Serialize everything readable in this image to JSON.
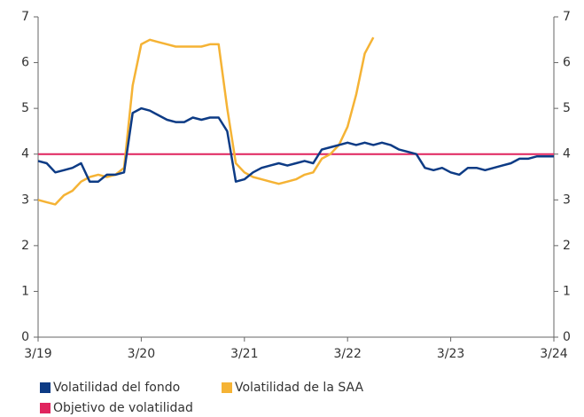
{
  "chart_data": {
    "type": "line",
    "x": [
      "2019-03",
      "2019-04",
      "2019-05",
      "2019-06",
      "2019-07",
      "2019-08",
      "2019-09",
      "2019-10",
      "2019-11",
      "2019-12",
      "2020-01",
      "2020-02",
      "2020-03",
      "2020-04",
      "2020-05",
      "2020-06",
      "2020-07",
      "2020-08",
      "2020-09",
      "2020-10",
      "2020-11",
      "2020-12",
      "2021-01",
      "2021-02",
      "2021-03",
      "2021-04",
      "2021-05",
      "2021-06",
      "2021-07",
      "2021-08",
      "2021-09",
      "2021-10",
      "2021-11",
      "2021-12",
      "2022-01",
      "2022-02",
      "2022-03",
      "2022-04",
      "2022-05",
      "2022-06",
      "2022-07",
      "2022-08",
      "2022-09",
      "2022-10",
      "2022-11",
      "2022-12",
      "2023-01",
      "2023-02",
      "2023-03",
      "2023-04",
      "2023-05",
      "2023-06",
      "2023-07",
      "2023-08",
      "2023-09",
      "2023-10",
      "2023-11",
      "2023-12",
      "2024-01",
      "2024-02",
      "2024-03"
    ],
    "series": [
      {
        "name": "Volatilidad del fondo",
        "color": "#0d3b85",
        "values": [
          3.85,
          3.8,
          3.6,
          3.65,
          3.7,
          3.8,
          3.4,
          3.4,
          3.55,
          3.55,
          3.6,
          4.9,
          5.0,
          4.95,
          4.85,
          4.75,
          4.7,
          4.7,
          4.8,
          4.75,
          4.8,
          4.8,
          4.5,
          3.4,
          3.45,
          3.6,
          3.7,
          3.75,
          3.8,
          3.75,
          3.8,
          3.85,
          3.8,
          4.1,
          4.15,
          4.2,
          4.25,
          4.2,
          4.25,
          4.2,
          4.25,
          4.2,
          4.1,
          4.05,
          4.0,
          3.7,
          3.65,
          3.7,
          3.6,
          3.55,
          3.7,
          3.7,
          3.65,
          3.7,
          3.75,
          3.8,
          3.9,
          3.9,
          3.95,
          3.95,
          3.95
        ]
      },
      {
        "name": "Volatilidad de la SAA",
        "color": "#f5b335",
        "values": [
          3.0,
          2.95,
          2.9,
          3.1,
          3.2,
          3.4,
          3.5,
          3.55,
          3.5,
          3.55,
          3.7,
          5.5,
          6.4,
          6.5,
          6.45,
          6.4,
          6.35,
          6.35,
          6.35,
          6.35,
          6.4,
          6.4,
          5.0,
          3.8,
          3.6,
          3.5,
          3.45,
          3.4,
          3.35,
          3.4,
          3.45,
          3.55,
          3.6,
          3.9,
          4.0,
          4.2,
          4.6,
          5.3,
          6.2,
          6.55,
          null,
          null,
          null,
          null,
          null,
          null,
          null,
          null,
          null,
          null,
          null,
          null,
          null,
          null,
          null,
          null,
          null,
          null,
          null,
          null,
          null
        ]
      },
      {
        "name": "Objetivo de volatilidad",
        "color": "#e0245e",
        "values": [
          4,
          4,
          4,
          4,
          4,
          4,
          4,
          4,
          4,
          4,
          4,
          4,
          4,
          4,
          4,
          4,
          4,
          4,
          4,
          4,
          4,
          4,
          4,
          4,
          4,
          4,
          4,
          4,
          4,
          4,
          4,
          4,
          4,
          4,
          4,
          4,
          4,
          4,
          4,
          4,
          4,
          4,
          4,
          4,
          4,
          4,
          4,
          4,
          4,
          4,
          4,
          4,
          4,
          4,
          4,
          4,
          4,
          4,
          4,
          4,
          4
        ]
      }
    ],
    "xlim": [
      "2019-03",
      "2024-03"
    ],
    "xticks": [
      {
        "value": "2019-03",
        "label": "3/19"
      },
      {
        "value": "2020-03",
        "label": "3/20"
      },
      {
        "value": "2021-03",
        "label": "3/21"
      },
      {
        "value": "2022-03",
        "label": "3/22"
      },
      {
        "value": "2023-03",
        "label": "3/23"
      },
      {
        "value": "2024-03",
        "label": "3/24"
      }
    ],
    "ylim": [
      0,
      7
    ],
    "yticks": [
      0,
      1,
      2,
      3,
      4,
      5,
      6,
      7
    ],
    "y2lim": [
      0,
      7
    ],
    "y2ticks": [
      0,
      1,
      2,
      3,
      4,
      5,
      6,
      7
    ]
  }
}
